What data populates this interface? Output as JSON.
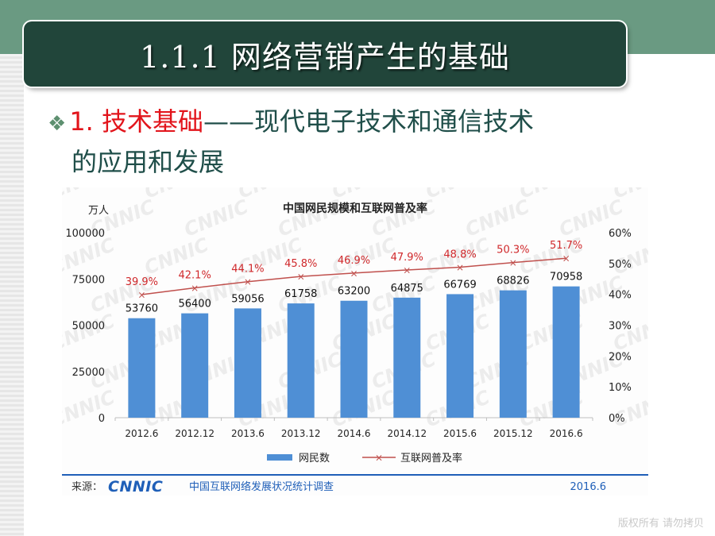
{
  "slide": {
    "title": "1.1.1  网络营销产生的基础",
    "bullet_icon": "diamond-bullet-icon",
    "bullet_prefix": "1. ",
    "bullet_highlight": "技术基础",
    "bullet_rest_line1": "——现代电子技术和通信技术",
    "bullet_rest_line2": "的应用和发展",
    "footer": "版权所有  请勿拷贝"
  },
  "colors": {
    "bar": "#4f8fd5",
    "line": "#c0504d",
    "line_label": "#d0282b",
    "title_bar": "#21453a",
    "band": "#6a9a82",
    "source_blue": "#1f5fb8"
  },
  "chart_data": {
    "type": "bar",
    "title": "中国网民规模和互联网普及率",
    "ylabel": "万人",
    "categories": [
      "2012.6",
      "2012.12",
      "2013.6",
      "2013.12",
      "2014.6",
      "2014.12",
      "2015.6",
      "2015.12",
      "2016.6"
    ],
    "series": [
      {
        "name": "网民数",
        "type": "bar",
        "axis": "left",
        "values": [
          53760,
          56400,
          59056,
          61758,
          63200,
          64875,
          66769,
          68826,
          70958
        ]
      },
      {
        "name": "互联网普及率",
        "type": "line",
        "axis": "right",
        "values": [
          39.9,
          42.1,
          44.1,
          45.8,
          46.9,
          47.9,
          48.8,
          50.3,
          51.7
        ],
        "labels": [
          "39.9%",
          "42.1%",
          "44.1%",
          "45.8%",
          "46.9%",
          "47.9%",
          "48.8%",
          "50.3%",
          "51.7%"
        ]
      }
    ],
    "ylim": [
      0,
      100000
    ],
    "yticks": [
      "0",
      "25000",
      "50000",
      "75000",
      "100000"
    ],
    "y2lim": [
      0,
      60
    ],
    "y2ticks": [
      "0%",
      "10%",
      "20%",
      "30%",
      "40%",
      "50%",
      "60%"
    ],
    "grid": false,
    "legend_position": "bottom",
    "watermark": "CNNIC",
    "source_label": "来源：",
    "source_logo": "CNNIC",
    "source_text": "中国互联网络发展状况统计调查",
    "source_date": "2016.6"
  }
}
